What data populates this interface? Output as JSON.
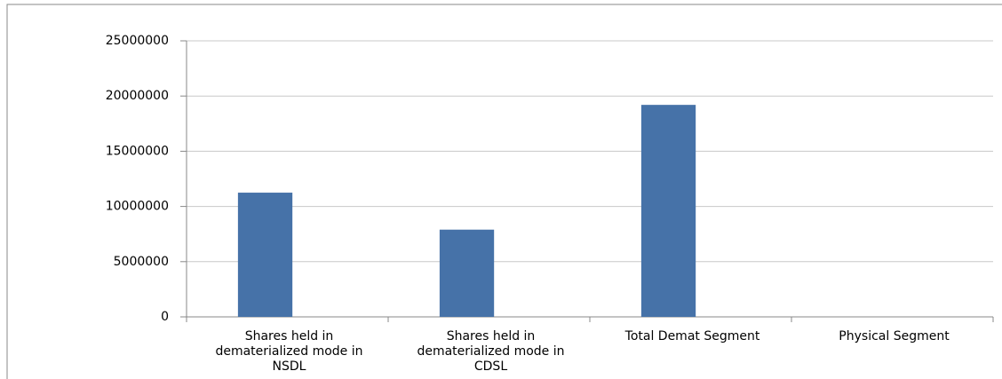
{
  "chart_data": {
    "type": "bar",
    "categories": [
      "Shares held in dematerialized mode in NSDL",
      "Shares held in dematerialized mode in CDSL",
      "Total Demat Segment",
      "Physical Segment"
    ],
    "values": [
      11250000,
      7900000,
      19200000,
      0
    ],
    "color": "#4672a8",
    "ylim": [
      0,
      25000000
    ],
    "yticks": [
      0,
      5000000,
      10000000,
      15000000,
      20000000,
      25000000
    ],
    "grid": true
  }
}
